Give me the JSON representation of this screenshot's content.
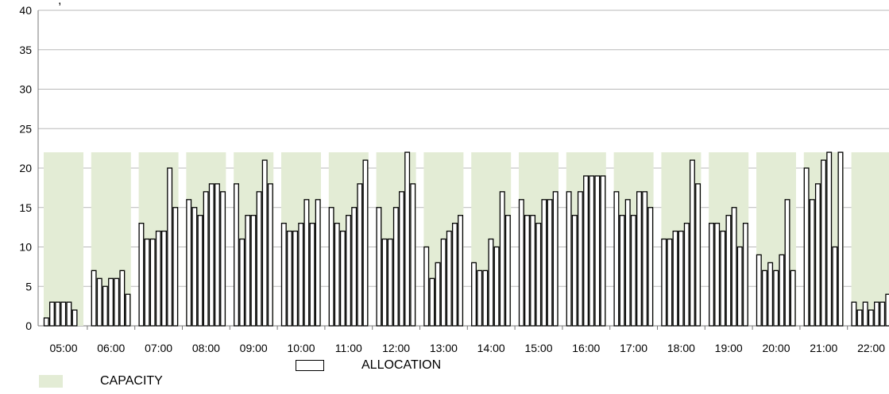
{
  "chart_data": {
    "type": "bar",
    "title": "",
    "xlabel": "",
    "ylabel": "",
    "ylim": [
      0,
      40
    ],
    "yticks": [
      0,
      5,
      10,
      15,
      20,
      25,
      30,
      35,
      40
    ],
    "grid": true,
    "legend_position": "bottom-left",
    "categories": [
      "05:00",
      "06:00",
      "07:00",
      "08:00",
      "09:00",
      "10:00",
      "11:00",
      "12:00",
      "13:00",
      "14:00",
      "15:00",
      "16:00",
      "17:00",
      "18:00",
      "19:00",
      "20:00",
      "21:00",
      "22:00"
    ],
    "series": [
      {
        "name": "CAPACITY",
        "color": "#e3ecd5",
        "values": [
          22,
          22,
          22,
          22,
          22,
          22,
          22,
          22,
          22,
          22,
          22,
          22,
          22,
          22,
          22,
          22,
          22,
          22
        ]
      },
      {
        "name": "ALLOCATION",
        "color": "#ffffff",
        "stroke": "#000000",
        "values": [
          [
            1,
            3,
            3,
            3,
            3,
            2
          ],
          [
            7,
            6,
            5,
            6,
            6,
            7,
            4
          ],
          [
            13,
            11,
            11,
            12,
            12,
            20,
            15
          ],
          [
            16,
            15,
            14,
            17,
            18,
            18,
            17
          ],
          [
            18,
            11,
            14,
            14,
            17,
            21,
            18
          ],
          [
            13,
            12,
            12,
            13,
            16,
            13,
            16
          ],
          [
            15,
            13,
            12,
            14,
            15,
            18,
            21
          ],
          [
            15,
            11,
            11,
            15,
            17,
            22,
            18
          ],
          [
            10,
            6,
            8,
            11,
            12,
            13,
            14
          ],
          [
            8,
            7,
            7,
            11,
            10,
            17,
            14
          ],
          [
            16,
            14,
            14,
            13,
            16,
            16,
            17
          ],
          [
            17,
            14,
            17,
            19,
            19,
            19,
            19
          ],
          [
            17,
            14,
            16,
            14,
            17,
            17,
            15
          ],
          [
            11,
            11,
            12,
            12,
            13,
            21,
            18
          ],
          [
            13,
            13,
            12,
            14,
            15,
            10,
            13
          ],
          [
            9,
            7,
            8,
            7,
            9,
            16,
            7
          ],
          [
            20,
            16,
            18,
            21,
            22,
            10,
            22
          ],
          [
            3,
            2,
            3,
            2,
            3,
            3,
            4
          ]
        ]
      }
    ],
    "header_fragment": "', "
  }
}
